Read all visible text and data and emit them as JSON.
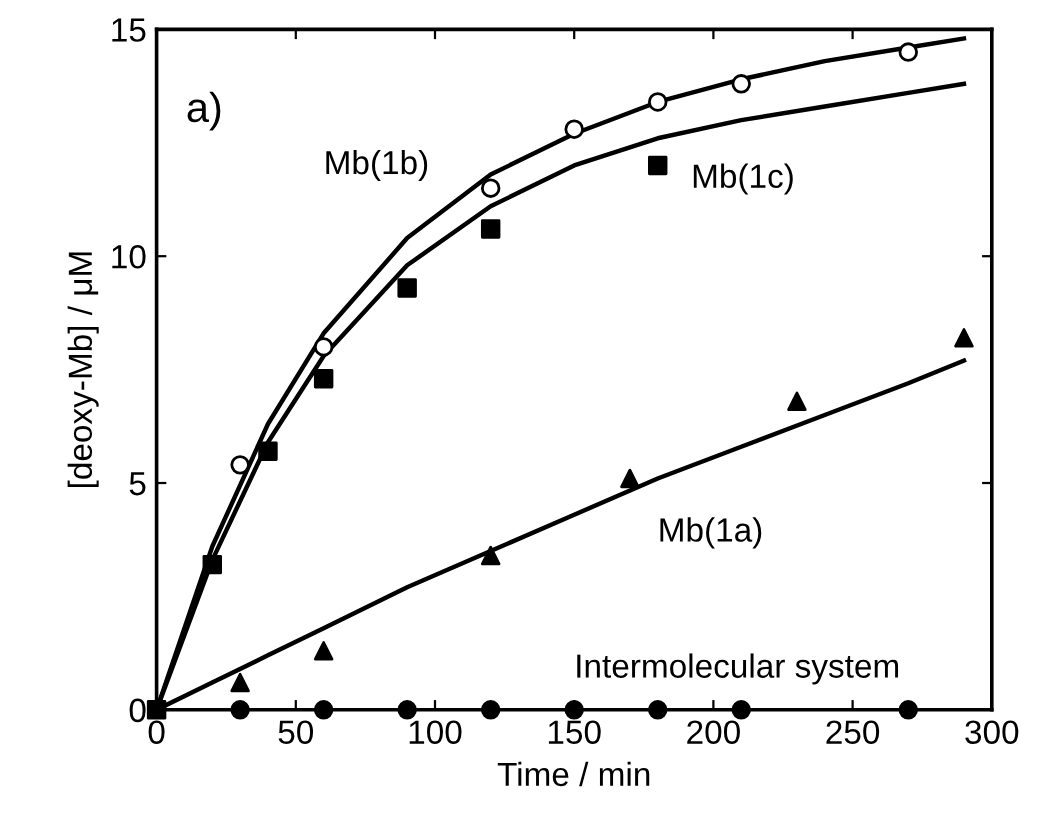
{
  "chart_data": {
    "type": "scatter",
    "xlabel": "Time / min",
    "ylabel": "[deoxy-Mb] / μM",
    "xlim": [
      0,
      300
    ],
    "ylim": [
      0,
      15
    ],
    "xticks": [
      0,
      50,
      100,
      150,
      200,
      250,
      300
    ],
    "yticks": [
      0,
      5,
      10,
      15
    ],
    "grid": false,
    "legend": false,
    "annotations": [
      "a)",
      "Mb(1b)",
      "Mb(1c)",
      "Mb(1a)",
      "Intermolecular system"
    ],
    "series": [
      {
        "marker": "circle",
        "color": "#ffffff",
        "x": [
          30,
          60,
          120,
          150,
          180,
          210,
          270
        ],
        "values": [
          5.4,
          8.0,
          11.5,
          12.8,
          13.4,
          13.8,
          14.5
        ]
      },
      {
        "marker": "square",
        "color": "#000000",
        "x": [
          0,
          20,
          40,
          60,
          90,
          120,
          180
        ],
        "values": [
          0,
          3.2,
          5.7,
          7.3,
          9.3,
          10.6,
          12.0
        ]
      },
      {
        "marker": "triangle",
        "color": "#000000",
        "x": [
          30,
          60,
          120,
          170,
          230,
          290
        ],
        "values": [
          0.6,
          1.3,
          3.4,
          5.1,
          6.8,
          8.2
        ]
      },
      {
        "marker": "circle",
        "color": "#000000",
        "x": [
          30,
          60,
          90,
          120,
          150,
          180,
          210,
          270
        ],
        "values": [
          0,
          0,
          0,
          0,
          0,
          0,
          0,
          0
        ]
      },
      {
        "type": "line",
        "marker": "none",
        "color": "#000000",
        "x": [
          0,
          20,
          40,
          60,
          90,
          120,
          150,
          180,
          210,
          240,
          270,
          290
        ],
        "values": [
          0,
          3.6,
          6.3,
          8.3,
          10.4,
          11.8,
          12.7,
          13.4,
          13.9,
          14.3,
          14.6,
          14.8
        ]
      },
      {
        "type": "line",
        "marker": "none",
        "color": "#000000",
        "x": [
          0,
          20,
          40,
          60,
          90,
          120,
          150,
          180,
          210,
          240,
          270,
          290
        ],
        "values": [
          0,
          3.3,
          5.9,
          7.8,
          9.8,
          11.1,
          12.0,
          12.6,
          13.0,
          13.3,
          13.6,
          13.8
        ]
      },
      {
        "type": "line",
        "marker": "none",
        "color": "#000000",
        "x": [
          0,
          20,
          40,
          60,
          90,
          120,
          150,
          180,
          210,
          240,
          270,
          290
        ],
        "values": [
          0,
          0.6,
          1.2,
          1.8,
          2.7,
          3.5,
          4.3,
          5.1,
          5.8,
          6.5,
          7.2,
          7.7
        ]
      }
    ]
  }
}
